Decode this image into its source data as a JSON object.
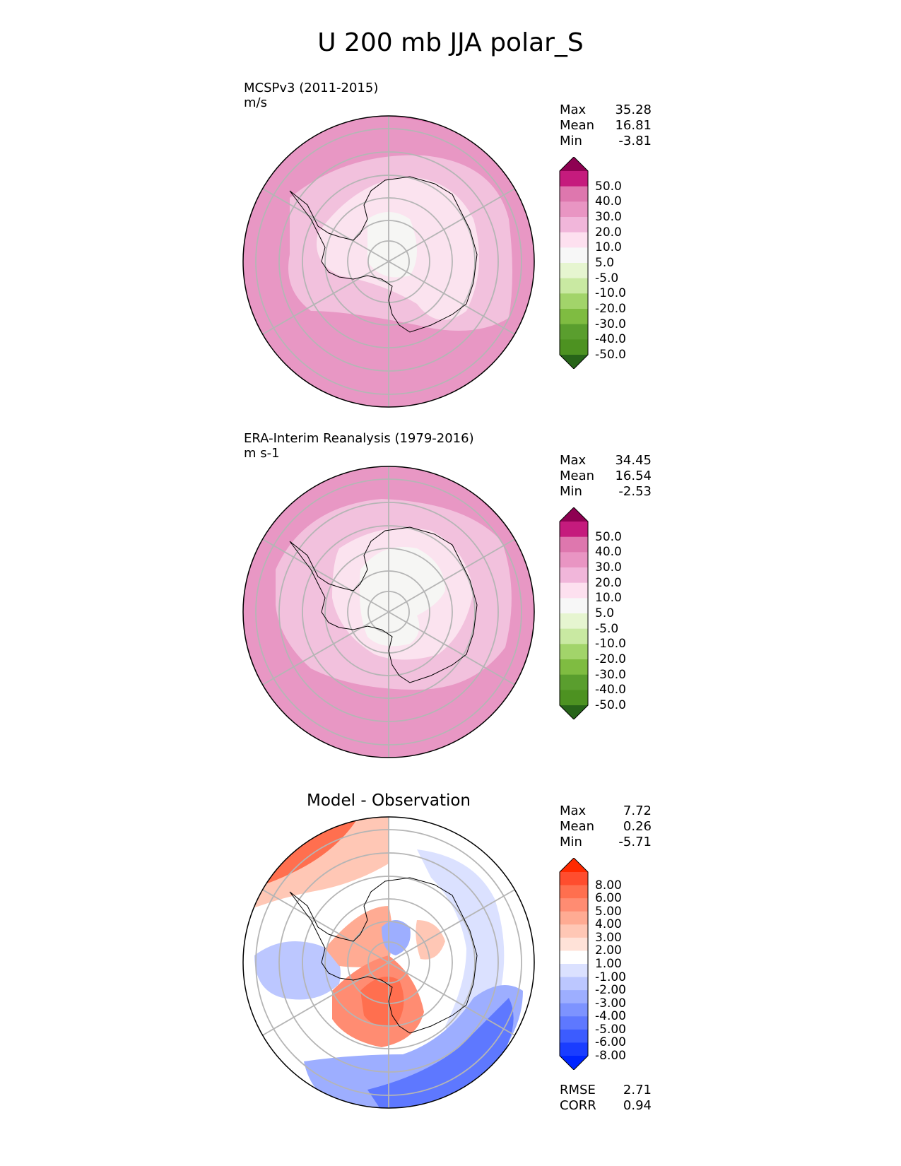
{
  "title": "U 200 mb JJA polar_S",
  "panels": [
    {
      "name": "MCSPv3 (2011-2015)",
      "units": "m/s",
      "stats": [
        {
          "label": "Max",
          "value": "35.28"
        },
        {
          "label": "Mean",
          "value": "16.81"
        },
        {
          "label": "Min",
          "value": "-3.81"
        }
      ],
      "colorbar": {
        "ticks": [
          "50.0",
          "40.0",
          "30.0",
          "20.0",
          "10.0",
          "5.0",
          "-5.0",
          "-10.0",
          "-20.0",
          "-30.0",
          "-40.0",
          "-50.0"
        ],
        "colors": [
          "#8e0152",
          "#c51b7d",
          "#de77ae",
          "#e995c3",
          "#f1b6da",
          "#fde0ef",
          "#f7f7f7",
          "#e6f5d0",
          "#c9e9a2",
          "#a2d46a",
          "#7fbc41",
          "#5a9e2e",
          "#4d9221",
          "#276419"
        ]
      }
    },
    {
      "name": "ERA-Interim Reanalysis (1979-2016)",
      "units": "m s-1",
      "stats": [
        {
          "label": "Max",
          "value": "34.45"
        },
        {
          "label": "Mean",
          "value": "16.54"
        },
        {
          "label": "Min",
          "value": "-2.53"
        }
      ],
      "colorbar": {
        "ticks": [
          "50.0",
          "40.0",
          "30.0",
          "20.0",
          "10.0",
          "5.0",
          "-5.0",
          "-10.0",
          "-20.0",
          "-30.0",
          "-40.0",
          "-50.0"
        ],
        "colors": [
          "#8e0152",
          "#c51b7d",
          "#de77ae",
          "#e995c3",
          "#f1b6da",
          "#fde0ef",
          "#f7f7f7",
          "#e6f5d0",
          "#c9e9a2",
          "#a2d46a",
          "#7fbc41",
          "#5a9e2e",
          "#4d9221",
          "#276419"
        ]
      }
    },
    {
      "name": "Model - Observation",
      "units": "",
      "stats": [
        {
          "label": "Max",
          "value": "7.72"
        },
        {
          "label": "Mean",
          "value": "0.26"
        },
        {
          "label": "Min",
          "value": "-5.71"
        }
      ],
      "extra_stats": [
        {
          "label": "RMSE",
          "value": "2.71"
        },
        {
          "label": "CORR",
          "value": "0.94"
        }
      ],
      "colorbar": {
        "ticks": [
          "8.00",
          "6.00",
          "5.00",
          "4.00",
          "3.00",
          "2.00",
          "1.00",
          "-1.00",
          "-2.00",
          "-3.00",
          "-4.00",
          "-5.00",
          "-6.00",
          "-8.00"
        ],
        "colors": [
          "#ff2a00",
          "#ff4d2e",
          "#ff6f4f",
          "#ff8c72",
          "#ffab93",
          "#ffc7b5",
          "#ffe2d8",
          "#ffffff",
          "#dbe1ff",
          "#bcc7ff",
          "#9daeff",
          "#7d93ff",
          "#5e78ff",
          "#3c5cff",
          "#1a3dff",
          "#0025ff"
        ]
      }
    }
  ]
}
